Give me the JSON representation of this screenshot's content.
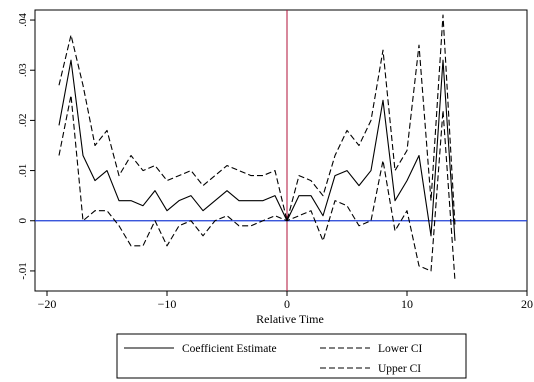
{
  "chart_data": {
    "type": "line",
    "title": "",
    "xlabel": "Relative Time",
    "ylabel": "",
    "xlim": [
      -21,
      20
    ],
    "ylim": [
      -0.014,
      0.042
    ],
    "x_ticks": [
      -20,
      -10,
      0,
      10,
      20
    ],
    "x_tick_labels": [
      "−20",
      "−10",
      "0",
      "10",
      "20"
    ],
    "y_ticks": [
      -0.01,
      0,
      0.01,
      0.02,
      0.03,
      0.04
    ],
    "y_tick_labels": [
      "-.01",
      "0",
      ".01",
      ".02",
      ".03",
      ".04"
    ],
    "grid": false,
    "legend_position": "bottom",
    "x": [
      -19,
      -18,
      -17,
      -16,
      -15,
      -14,
      -13,
      -12,
      -11,
      -10,
      -9,
      -8,
      -7,
      -6,
      -5,
      -4,
      -3,
      -2,
      -1,
      0,
      1,
      2,
      3,
      4,
      5,
      6,
      7,
      8,
      9,
      10,
      11,
      12,
      13,
      14
    ],
    "series": [
      {
        "name": "Coefficient Estimate",
        "style": "solid",
        "values": [
          0.019,
          0.032,
          0.013,
          0.008,
          0.01,
          0.004,
          0.004,
          0.003,
          0.006,
          0.002,
          0.004,
          0.005,
          0.002,
          0.004,
          0.006,
          0.004,
          0.004,
          0.004,
          0.005,
          0.0,
          0.005,
          0.005,
          0.001,
          0.009,
          0.01,
          0.007,
          0.01,
          0.024,
          0.004,
          0.008,
          0.013,
          -0.003,
          0.032,
          -0.004
        ]
      },
      {
        "name": "Lower CI",
        "style": "dashed",
        "values": [
          0.013,
          0.025,
          0.0,
          0.002,
          0.002,
          -0.001,
          -0.005,
          -0.005,
          0.0,
          -0.005,
          -0.001,
          0.0,
          -0.003,
          0.0,
          0.001,
          -0.001,
          -0.001,
          0.0,
          0.001,
          0.0,
          0.001,
          0.002,
          -0.004,
          0.004,
          0.003,
          -0.001,
          0.0,
          0.012,
          -0.002,
          0.002,
          -0.009,
          -0.01,
          0.022,
          -0.012
        ]
      },
      {
        "name": "Upper CI",
        "style": "dashed",
        "values": [
          0.027,
          0.037,
          0.027,
          0.015,
          0.018,
          0.009,
          0.013,
          0.01,
          0.011,
          0.008,
          0.009,
          0.01,
          0.007,
          0.009,
          0.011,
          0.01,
          0.009,
          0.009,
          0.01,
          0.0,
          0.009,
          0.008,
          0.005,
          0.013,
          0.018,
          0.015,
          0.02,
          0.034,
          0.01,
          0.014,
          0.035,
          0.004,
          0.041,
          -0.001
        ]
      }
    ],
    "reference_lines": [
      {
        "axis": "x",
        "value": 0,
        "color": "#b0103a"
      },
      {
        "axis": "y",
        "value": 0,
        "color": "#1f3fd6"
      }
    ]
  }
}
